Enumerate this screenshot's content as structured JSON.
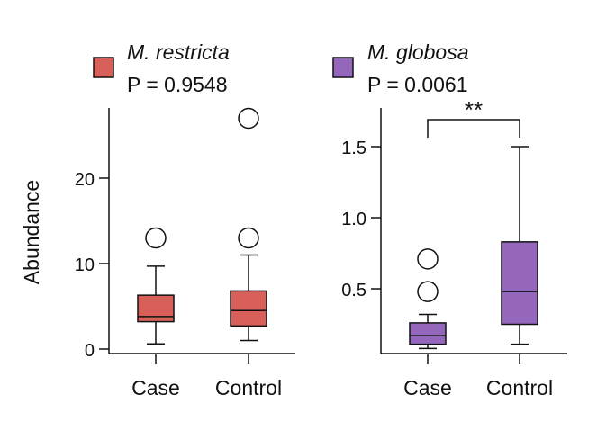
{
  "ylabel_shared": "Abundance",
  "chart_data": [
    {
      "type": "box",
      "title": "M. restricta",
      "legend_label": "M. restricta",
      "pvalue_text": "P = 0.9548",
      "color": "#d95f5a",
      "categories": [
        "Case",
        "Control"
      ],
      "ylabel": "Abundance",
      "ylim": [
        0,
        28
      ],
      "yticks": [
        0,
        10,
        20
      ],
      "ytick_labels": [
        "0",
        "10",
        "20"
      ],
      "boxes": [
        {
          "category": "Case",
          "whisker_low": 0.6,
          "q1": 3.2,
          "median": 3.8,
          "q3": 6.3,
          "whisker_high": 9.7,
          "outliers": [
            13.0
          ]
        },
        {
          "category": "Control",
          "whisker_low": 1.0,
          "q1": 2.7,
          "median": 4.5,
          "q3": 6.8,
          "whisker_high": 11.0,
          "outliers": [
            13.0,
            27.0
          ]
        }
      ]
    },
    {
      "type": "box",
      "title": "M. globosa",
      "legend_label": "M. globosa",
      "pvalue_text": "P = 0.0061",
      "color": "#9467bd",
      "categories": [
        "Case",
        "Control"
      ],
      "ylabel": "",
      "ylim": [
        0.0,
        1.75
      ],
      "yticks": [
        0.5,
        1.0,
        1.5
      ],
      "ytick_labels": [
        "0.5",
        "1.0",
        "1.5"
      ],
      "significance": "**",
      "boxes": [
        {
          "category": "Case",
          "whisker_low": 0.08,
          "q1": 0.11,
          "median": 0.17,
          "q3": 0.26,
          "whisker_high": 0.32,
          "outliers": [
            0.48,
            0.71
          ]
        },
        {
          "category": "Control",
          "whisker_low": 0.11,
          "q1": 0.25,
          "median": 0.48,
          "q3": 0.83,
          "whisker_high": 1.5,
          "outliers": []
        }
      ]
    }
  ]
}
